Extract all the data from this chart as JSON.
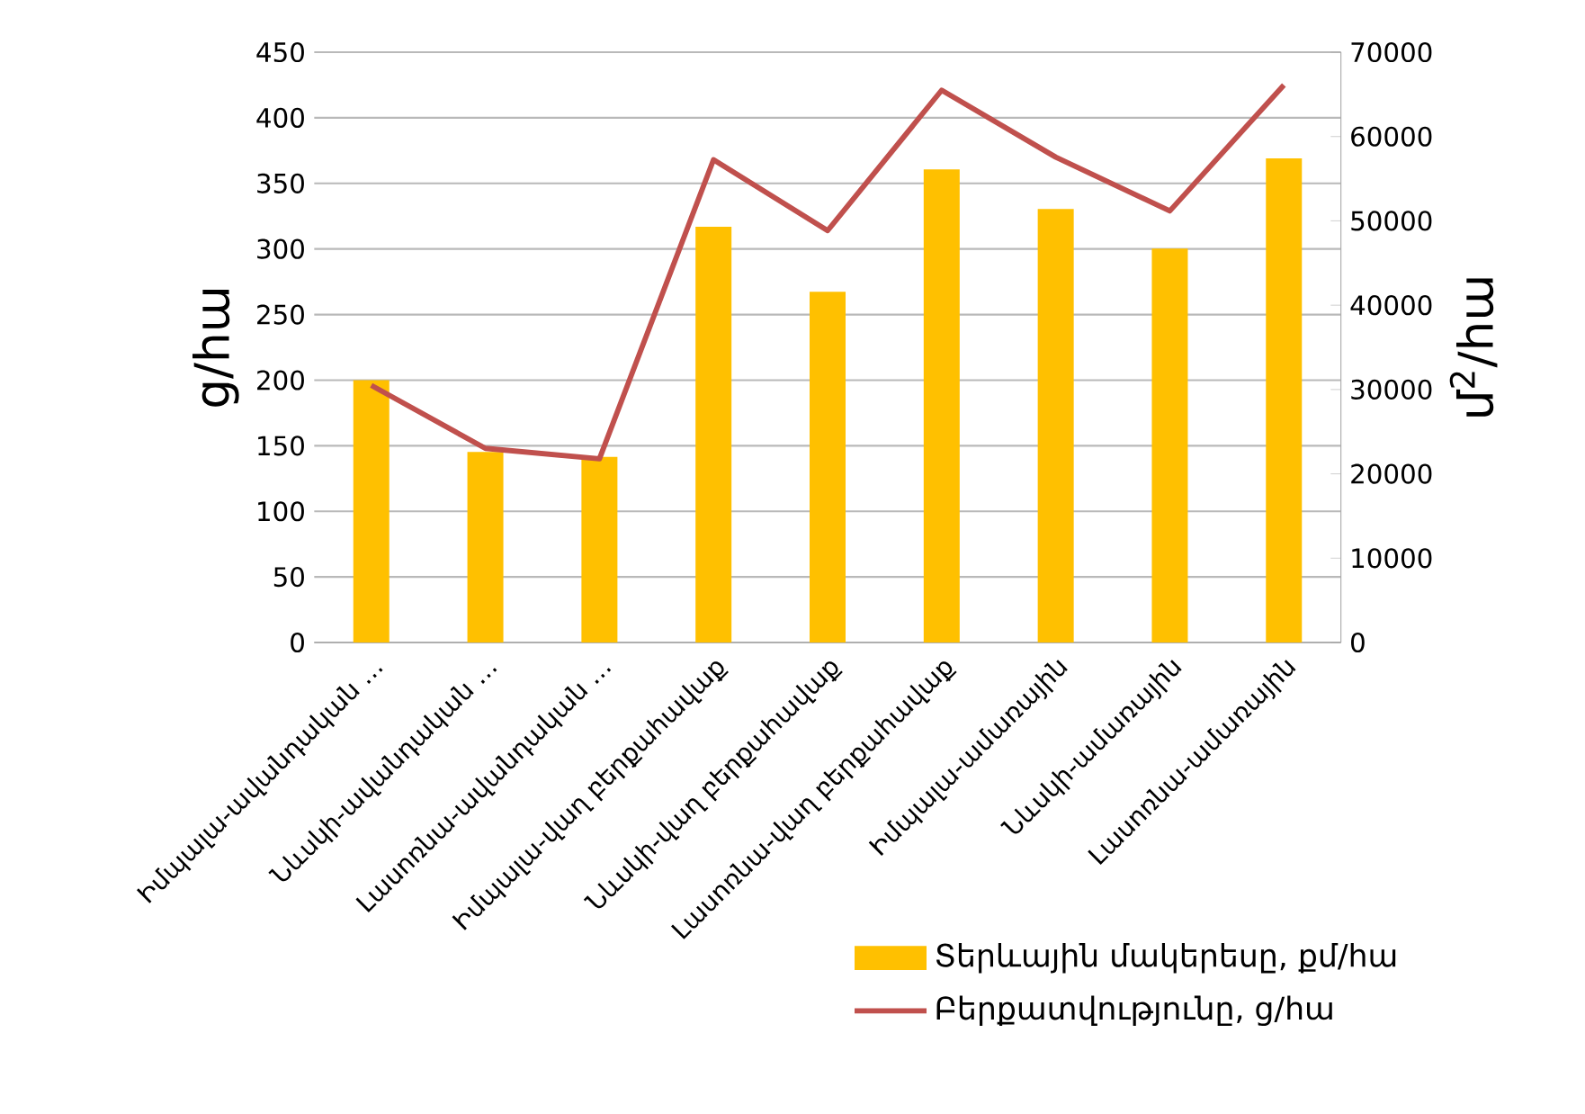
{
  "chart_data": {
    "type": "bar",
    "categories": [
      "Իմպալա-ավանդական …",
      "Նևսկի-ավանդական …",
      "Լասոռնա-ավանդական …",
      "Իմպալա-վաղ բերքահավաք",
      "Նևսկի-վաղ բերքահավաք",
      "Լասոռնա-վաղ բերքահավաք",
      "Իմպալա-ամառային",
      "Նևսկի-ամառային",
      "Լասոռնա-ամառային"
    ],
    "series": [
      {
        "name": "Տերևային մակերեսը, քմ/հա",
        "axis": "y2",
        "color": "#ffc000",
        "values": [
          31100,
          22600,
          22000,
          49300,
          41600,
          56100,
          51400,
          46700,
          57400
        ]
      },
      {
        "name": "Բերքատվությունը, ց/հա",
        "type": "line",
        "axis": "y",
        "color": "#c0504d",
        "values": [
          196,
          148,
          140,
          368,
          314,
          421,
          370,
          329,
          425
        ]
      }
    ],
    "ylabel": "ց/հա",
    "y2label": "մ$^{2}$/հա",
    "ylim": [
      0,
      450
    ],
    "yticks": [
      0,
      50,
      100,
      150,
      200,
      250,
      300,
      350,
      400,
      450
    ],
    "y2lim": [
      0,
      70000
    ],
    "y2ticks": [
      0,
      10000,
      20000,
      30000,
      40000,
      50000,
      60000,
      70000
    ],
    "grid": "y",
    "legend": "bottom",
    "marker": "none"
  }
}
